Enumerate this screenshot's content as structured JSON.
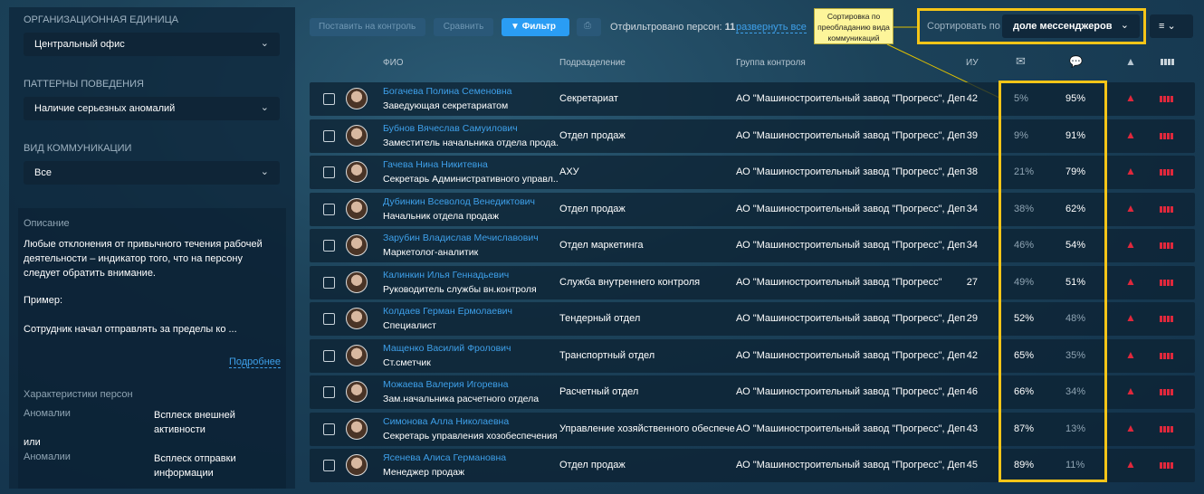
{
  "sidebar": {
    "org_label": "Организационная единица",
    "org_value": "Центральный офис",
    "patterns_label": "Паттерны поведения",
    "patterns_value": "Наличие серьезных аномалий",
    "comm_label": "Вид коммуникации",
    "comm_value": "Все",
    "desc_label": "Описание",
    "desc_text": "Любые отклонения от привычного течения рабочей деятельности – индикатор того, что на персону следует обратить внимание.",
    "example_label": "Пример:",
    "example_text": "Сотрудник начал отправлять за пределы ко ...",
    "more_link": "Подробнее",
    "chars_label": "Характеристики персон",
    "chars": [
      {
        "key": "Аномалии",
        "value": "Всплеск внешней активности"
      },
      {
        "key": "Аномалии",
        "value": "Всплеск отправки информации"
      }
    ],
    "or_label": "или"
  },
  "toolbar": {
    "control": "Поставить на контроль",
    "compare": "Сравнить",
    "filter": "Фильтр",
    "filtered_label": "Отфильтровано персон:",
    "filtered_count": "11",
    "expand_all": "развернуть все",
    "sort_label": "Сортировать по",
    "sort_value": "доле мессенджеров"
  },
  "callout": "Сортировка по преобладанию вида коммуникаций",
  "headers": {
    "name": "ФИО",
    "dept": "Подразделение",
    "group": "Группа контроля",
    "iu": "ИУ"
  },
  "colors": {
    "accent": "#2a9df4",
    "highlight": "#f5c518",
    "alert": "#e0283c"
  },
  "rows": [
    {
      "name": "Богачева Полина Семеновна",
      "position": "Заведующая секретариатом",
      "dept": "Секретариат",
      "group": "АО \"Машиностроительный завод \"Прогресс\", Депар...",
      "iu": "42",
      "email": "5%",
      "msg": "95%"
    },
    {
      "name": "Бубнов Вячеслав Самуилович",
      "position": "Заместитель начальника отдела прода...",
      "dept": "Отдел продаж",
      "group": "АО \"Машиностроительный завод \"Прогресс\", Депар...",
      "iu": "39",
      "email": "9%",
      "msg": "91%"
    },
    {
      "name": "Гачева Нина Никитевна",
      "position": "Секретарь Административного управл...",
      "dept": "АХУ",
      "group": "АО \"Машиностроительный завод \"Прогресс\", Депар...",
      "iu": "38",
      "email": "21%",
      "msg": "79%"
    },
    {
      "name": "Дубинкин Всеволод Венедиктович",
      "position": "Начальник отдела продаж",
      "dept": "Отдел продаж",
      "group": "АО \"Машиностроительный завод \"Прогресс\", Депар...",
      "iu": "34",
      "email": "38%",
      "msg": "62%"
    },
    {
      "name": "Зарубин Владислав Мечиславович",
      "position": "Маркетолог-аналитик",
      "dept": "Отдел маркетинга",
      "group": "АО \"Машиностроительный завод \"Прогресс\", Депар...",
      "iu": "34",
      "email": "46%",
      "msg": "54%"
    },
    {
      "name": "Калинкин Илья Геннадьевич",
      "position": "Руководитель службы вн.контроля",
      "dept": "Служба внутреннего контроля",
      "group": "АО \"Машиностроительный завод \"Прогресс\"",
      "iu": "27",
      "email": "49%",
      "msg": "51%"
    },
    {
      "name": "Колдаев Герман Ермолаевич",
      "position": "Специалист",
      "dept": "Тендерный отдел",
      "group": "АО \"Машиностроительный завод \"Прогресс\", Депар...",
      "iu": "29",
      "email": "52%",
      "msg": "48%"
    },
    {
      "name": "Мащенко Василий Фролович",
      "position": "Ст.сметчик",
      "dept": "Транспортный отдел",
      "group": "АО \"Машиностроительный завод \"Прогресс\", Депар...",
      "iu": "42",
      "email": "65%",
      "msg": "35%"
    },
    {
      "name": "Можаева Валерия Игоревна",
      "position": "Зам.начальника расчетного отдела",
      "dept": "Расчетный отдел",
      "group": "АО \"Машиностроительный завод \"Прогресс\", Депар...",
      "iu": "46",
      "email": "66%",
      "msg": "34%"
    },
    {
      "name": "Симонова Алла Николаевна",
      "position": "Секретарь управления хозобеспечения",
      "dept": "Управление хозяйственного обеспече...",
      "group": "АО \"Машиностроительный завод \"Прогресс\", Депар...",
      "iu": "43",
      "email": "87%",
      "msg": "13%"
    },
    {
      "name": "Ясенева Алиса Германовна",
      "position": "Менеджер продаж",
      "dept": "Отдел продаж",
      "group": "АО \"Машиностроительный завод \"Прогресс\", Депар...",
      "iu": "45",
      "email": "89%",
      "msg": "11%"
    }
  ]
}
